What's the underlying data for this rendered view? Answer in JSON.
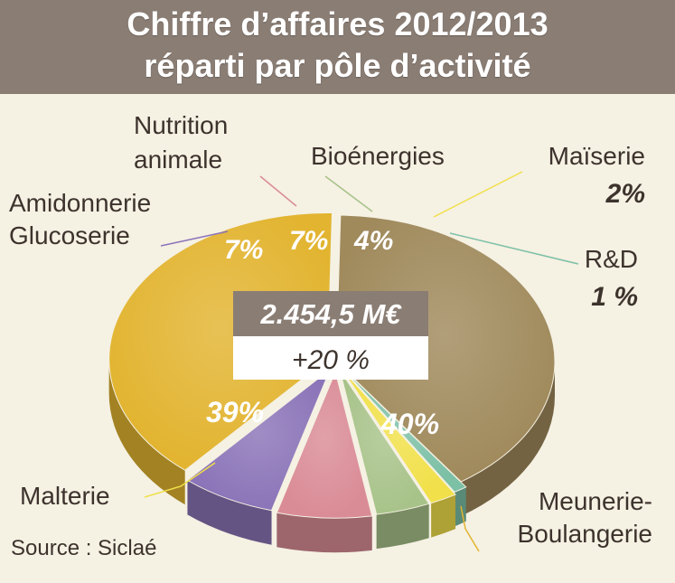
{
  "title": {
    "line1": "Chiffre d’affaires 2012/2013",
    "line2": "réparti par pôle d’activité"
  },
  "total": {
    "amount": "2.454,5 M€",
    "growth": "+20 %"
  },
  "source": "Source : Siclaé",
  "chart_data": {
    "type": "pie",
    "title": "Chiffre d’affaires 2012/2013 réparti par pôle d’activité",
    "slices": [
      {
        "label": "Meunerie-Boulangerie",
        "value": 40,
        "display": "40%",
        "color": "#a08a5c"
      },
      {
        "label": "R&D",
        "value": 1,
        "display": "1 %",
        "color": "#7cc0a6"
      },
      {
        "label": "Maïserie",
        "value": 2,
        "display": "2%",
        "color": "#f1e049"
      },
      {
        "label": "Bioénergies",
        "value": 4,
        "display": "4%",
        "color": "#a8c38a"
      },
      {
        "label": "Nutrition animale",
        "value": 7,
        "display": "7%",
        "color": "#da8c96"
      },
      {
        "label": "Amidonnerie Glucoserie",
        "value": 7,
        "display": "7%",
        "color": "#8b74b8"
      },
      {
        "label": "Malterie",
        "value": 39,
        "display": "39%",
        "color": "#e2b430"
      }
    ],
    "labels": {
      "meunerie_l1": "Meunerie-",
      "meunerie_l2": "Boulangerie",
      "rd": "R&D",
      "maiserie": "Maïserie",
      "bioenergies": "Bioénergies",
      "nutrition_l1": "Nutrition",
      "nutrition_l2": "animale",
      "amidon_l1": "Amidonnerie",
      "amidon_l2": "Glucoserie",
      "malterie": "Malterie"
    }
  }
}
